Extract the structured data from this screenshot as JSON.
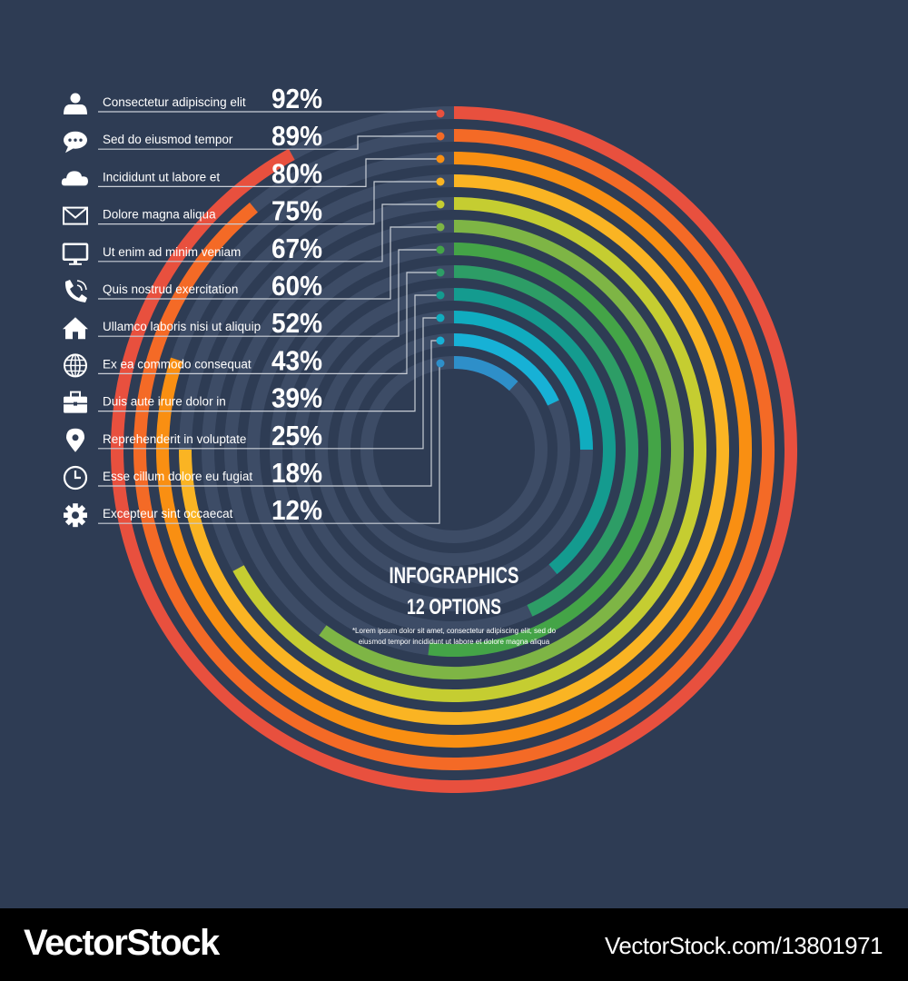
{
  "chart_data": {
    "type": "radial-bar",
    "title": "INFOGRAPHICS",
    "subtitle": "12 OPTIONS",
    "note_line1": "*Lorem ipsum dolor sit amet, consectetur adipiscing elit, sed do",
    "note_line2": "eiusmod tempor incididunt ut labore et dolore magna aliqua",
    "ylim": [
      0,
      100
    ],
    "items": [
      {
        "label": "Consectetur adipiscing elit",
        "value": 92,
        "value_label": "92%",
        "icon": "user-icon",
        "color": "#e8503e"
      },
      {
        "label": "Sed do eiusmod tempor",
        "value": 89,
        "value_label": "89%",
        "icon": "chat-bubble-icon",
        "color": "#f46a26"
      },
      {
        "label": "Incididunt ut labore et",
        "value": 80,
        "value_label": "80%",
        "icon": "cloud-icon",
        "color": "#f98f12"
      },
      {
        "label": "Dolore magna aliqua",
        "value": 75,
        "value_label": "75%",
        "icon": "envelope-icon",
        "color": "#fab423"
      },
      {
        "label": "Ut enim ad minim veniam",
        "value": 67,
        "value_label": "67%",
        "icon": "monitor-icon",
        "color": "#c5cd31"
      },
      {
        "label": "Quis nostrud exercitation",
        "value": 60,
        "value_label": "60%",
        "icon": "phone-icon",
        "color": "#7eb545"
      },
      {
        "label": "Ullamco laboris nisi ut aliquip",
        "value": 52,
        "value_label": "52%",
        "icon": "home-icon",
        "color": "#44a447"
      },
      {
        "label": "Ex ea commodo consequat",
        "value": 43,
        "value_label": "43%",
        "icon": "globe-icon",
        "color": "#2d9d66"
      },
      {
        "label": "Duis aute irure dolor in",
        "value": 39,
        "value_label": "39%",
        "icon": "briefcase-icon",
        "color": "#149b8f"
      },
      {
        "label": "Reprehenderit in voluptate",
        "value": 25,
        "value_label": "25%",
        "icon": "map-pin-icon",
        "color": "#10acbf"
      },
      {
        "label": "Esse cillum dolore eu fugiat",
        "value": 18,
        "value_label": "18%",
        "icon": "clock-icon",
        "color": "#17b1d6"
      },
      {
        "label": "Excepteur sint occaecat",
        "value": 12,
        "value_label": "12%",
        "icon": "gear-icon",
        "color": "#2e8fc9"
      }
    ]
  },
  "colors": {
    "background": "#2e3c54",
    "track": "#3d4c66",
    "connector": "#c9ced6",
    "text": "#ffffff"
  },
  "footer": {
    "brand_left": "VectorStock",
    "brand_right": "VectorStock.com/13801971"
  }
}
